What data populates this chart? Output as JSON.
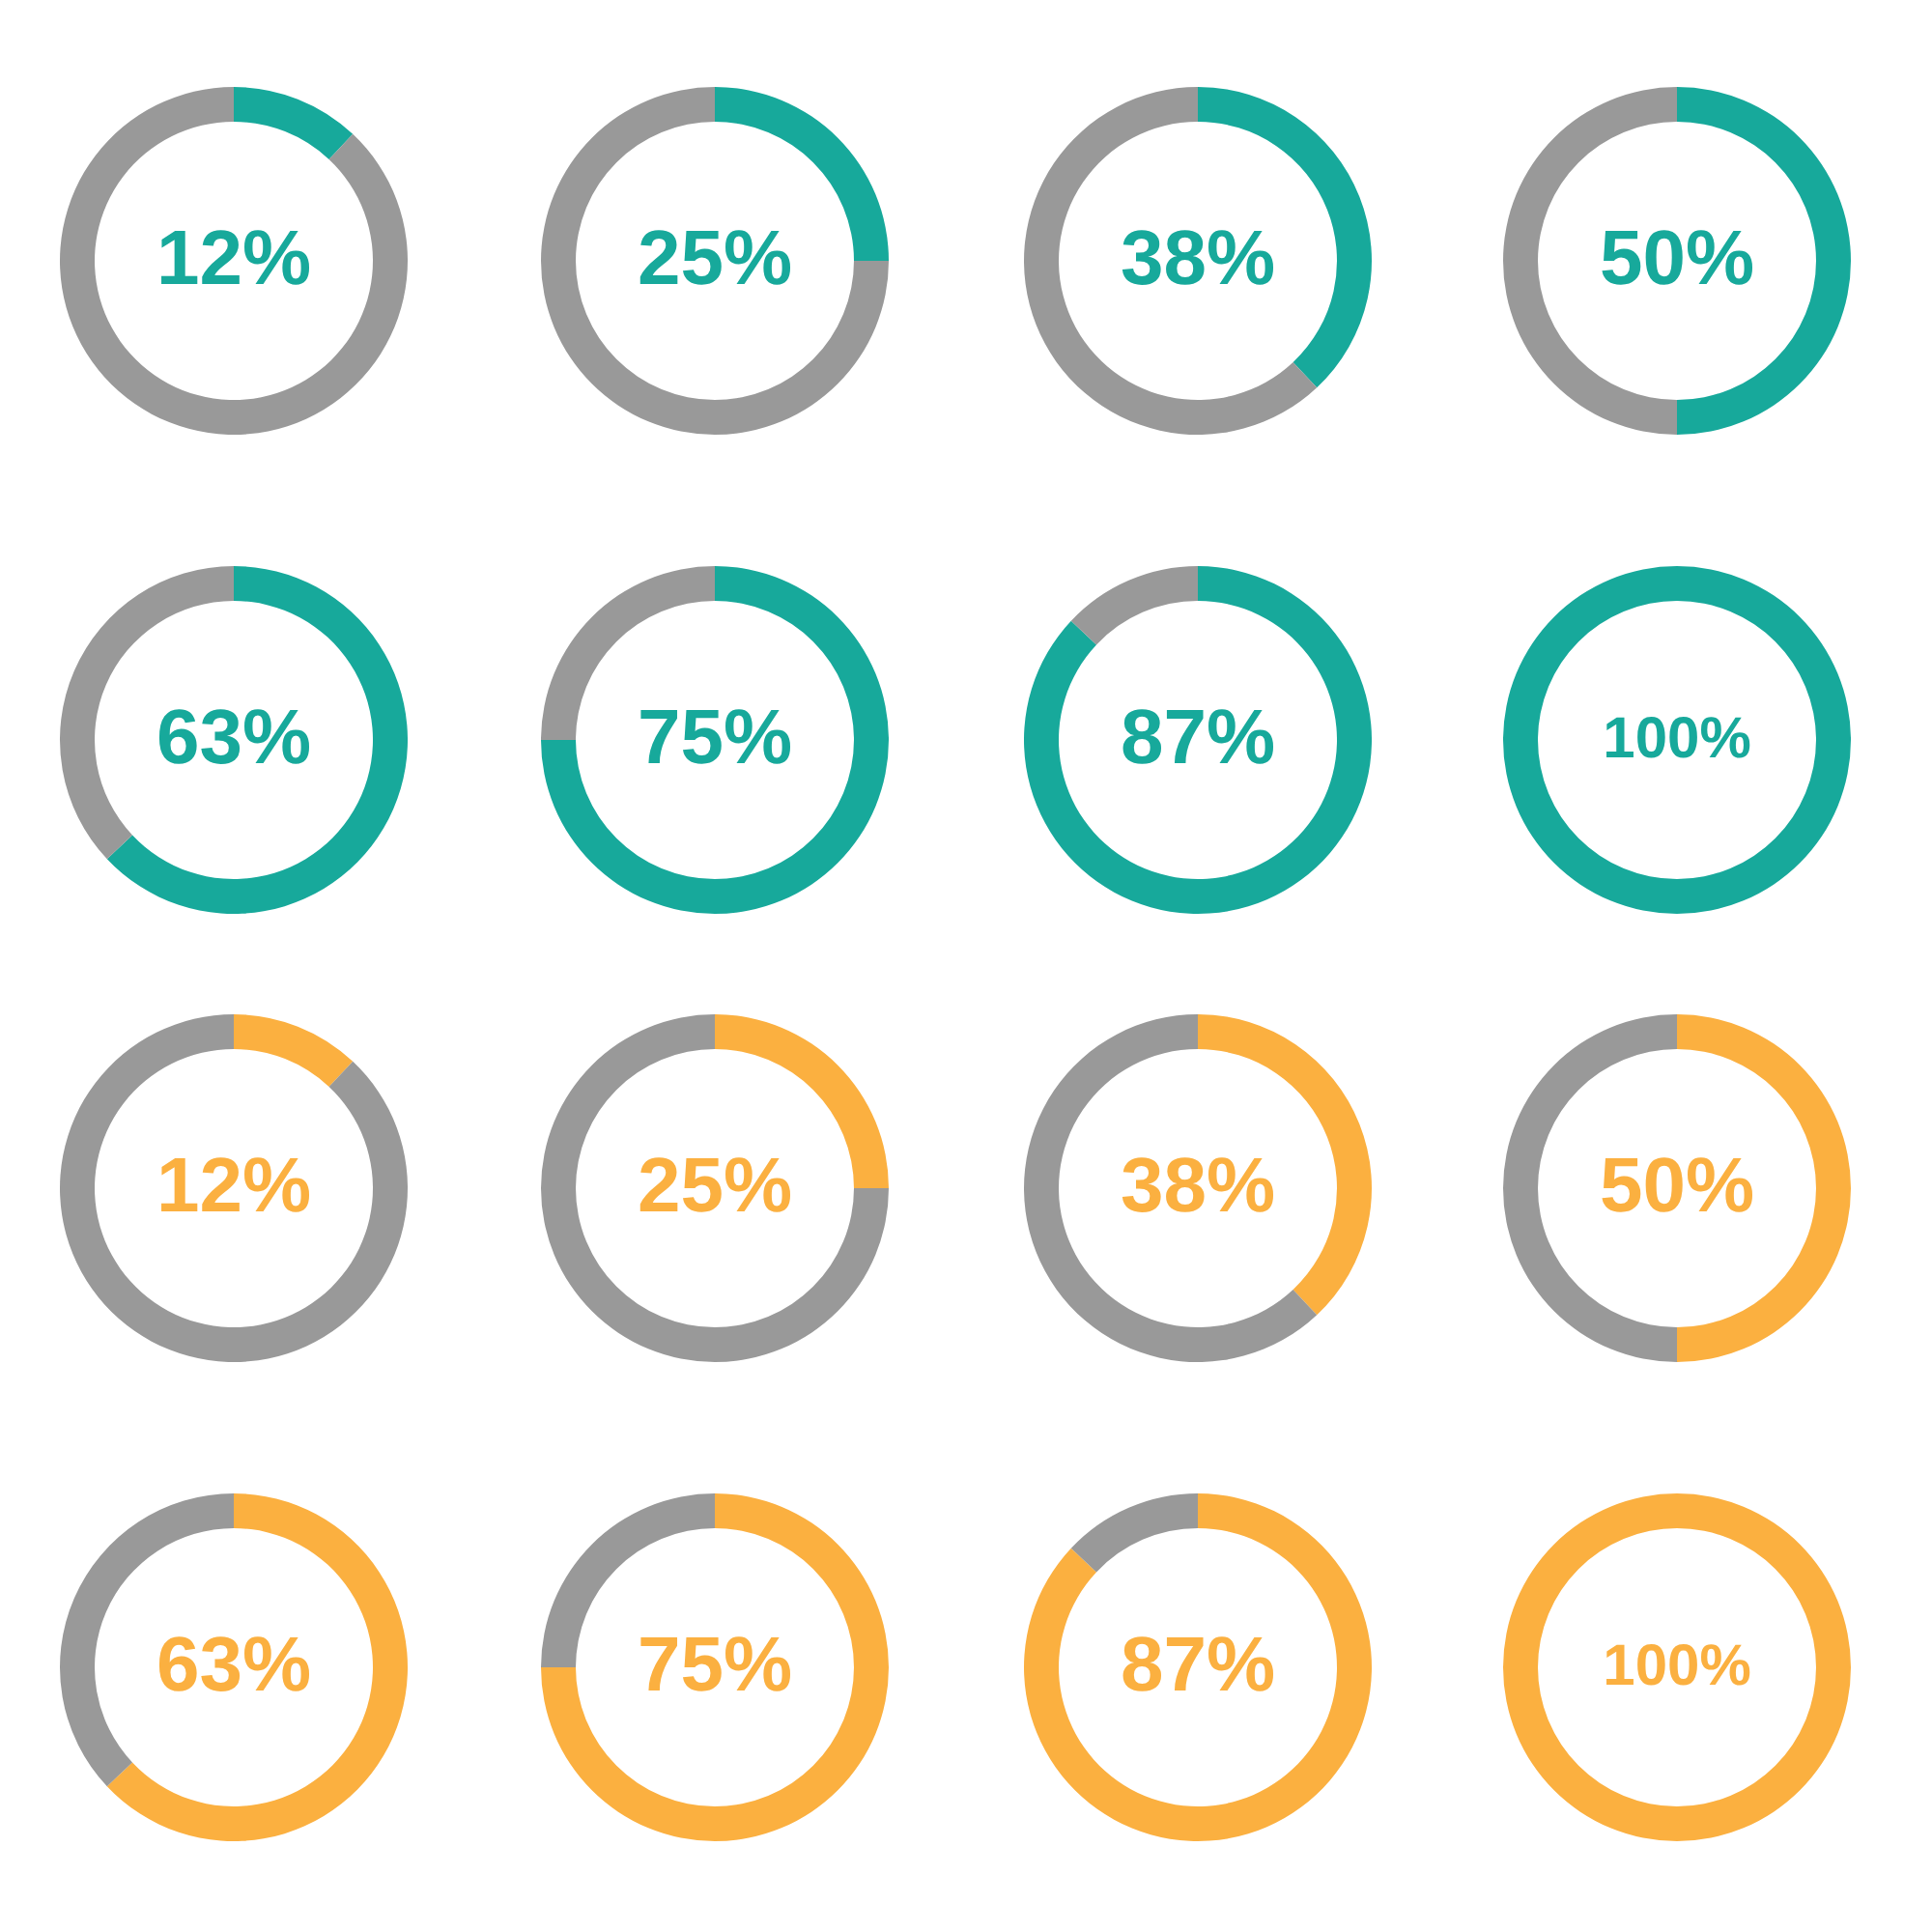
{
  "chart_data": [
    {
      "type": "donut",
      "categories": [
        null,
        null
      ],
      "values": [
        12,
        88
      ],
      "colors": [
        "#17a99b",
        "#999999"
      ],
      "value_labels": [
        "12%",
        null
      ]
    },
    {
      "type": "donut",
      "categories": [
        null,
        null
      ],
      "values": [
        25,
        75
      ],
      "colors": [
        "#17a99b",
        "#999999"
      ],
      "value_labels": [
        "25%",
        null
      ]
    },
    {
      "type": "donut",
      "categories": [
        null,
        null
      ],
      "values": [
        38,
        62
      ],
      "colors": [
        "#17a99b",
        "#999999"
      ],
      "value_labels": [
        "38%",
        null
      ]
    },
    {
      "type": "donut",
      "categories": [
        null,
        null
      ],
      "values": [
        50,
        50
      ],
      "colors": [
        "#17a99b",
        "#999999"
      ],
      "value_labels": [
        "50%",
        null
      ]
    },
    {
      "type": "donut",
      "categories": [
        null,
        null
      ],
      "values": [
        63,
        37
      ],
      "colors": [
        "#17a99b",
        "#999999"
      ],
      "value_labels": [
        "63%",
        null
      ]
    },
    {
      "type": "donut",
      "categories": [
        null,
        null
      ],
      "values": [
        75,
        25
      ],
      "colors": [
        "#17a99b",
        "#999999"
      ],
      "value_labels": [
        "75%",
        null
      ]
    },
    {
      "type": "donut",
      "categories": [
        null,
        null
      ],
      "values": [
        87,
        13
      ],
      "colors": [
        "#17a99b",
        "#999999"
      ],
      "value_labels": [
        "87%",
        null
      ]
    },
    {
      "type": "donut",
      "categories": [
        null,
        null
      ],
      "values": [
        100,
        0
      ],
      "colors": [
        "#17a99b",
        "#999999"
      ],
      "value_labels": [
        "100%",
        null
      ]
    },
    {
      "type": "donut",
      "categories": [
        null,
        null
      ],
      "values": [
        12,
        88
      ],
      "colors": [
        "#fbb040",
        "#999999"
      ],
      "value_labels": [
        "12%",
        null
      ]
    },
    {
      "type": "donut",
      "categories": [
        null,
        null
      ],
      "values": [
        25,
        75
      ],
      "colors": [
        "#fbb040",
        "#999999"
      ],
      "value_labels": [
        "25%",
        null
      ]
    },
    {
      "type": "donut",
      "categories": [
        null,
        null
      ],
      "values": [
        38,
        62
      ],
      "colors": [
        "#fbb040",
        "#999999"
      ],
      "value_labels": [
        "38%",
        null
      ]
    },
    {
      "type": "donut",
      "categories": [
        null,
        null
      ],
      "values": [
        50,
        50
      ],
      "colors": [
        "#fbb040",
        "#999999"
      ],
      "value_labels": [
        "50%",
        null
      ]
    },
    {
      "type": "donut",
      "categories": [
        null,
        null
      ],
      "values": [
        63,
        37
      ],
      "colors": [
        "#fbb040",
        "#999999"
      ],
      "value_labels": [
        "63%",
        null
      ]
    },
    {
      "type": "donut",
      "categories": [
        null,
        null
      ],
      "values": [
        75,
        25
      ],
      "colors": [
        "#fbb040",
        "#999999"
      ],
      "value_labels": [
        "75%",
        null
      ]
    },
    {
      "type": "donut",
      "categories": [
        null,
        null
      ],
      "values": [
        87,
        13
      ],
      "colors": [
        "#fbb040",
        "#999999"
      ],
      "value_labels": [
        "87%",
        null
      ]
    },
    {
      "type": "donut",
      "categories": [
        null,
        null
      ],
      "values": [
        100,
        0
      ],
      "colors": [
        "#fbb040",
        "#999999"
      ],
      "value_labels": [
        "100%",
        null
      ]
    }
  ]
}
